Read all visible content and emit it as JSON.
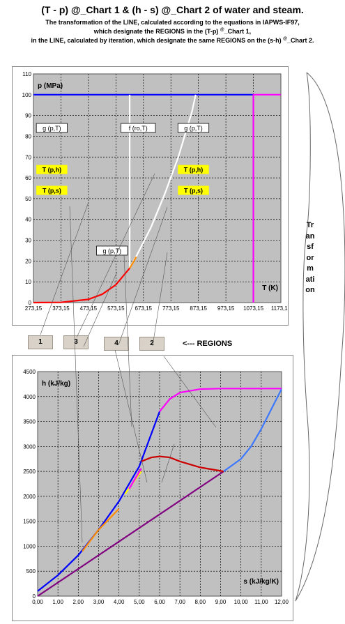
{
  "header": {
    "title": "(T - p) @_Chart 1 &  (h - s) @_Chart 2 of water and steam.",
    "line1": "The transformation of the LINE, calculated according to the equations in IAPWS-IF97,",
    "line2_pre": "which designate the REGIONS in the (T-p) ",
    "line2_sup": "@",
    "line2_post": "_Chart 1,",
    "line3_pre": "in the LINE, calculated by iteration, which designate the same REGIONS on the (s-h) ",
    "line3_sup": "@",
    "line3_post": "_Chart 2."
  },
  "regions": {
    "buttons": [
      "1",
      "3",
      "4",
      "2"
    ],
    "label": "<--- REGIONS"
  },
  "side_word": "Transformation",
  "colors": {
    "plot_bg": "#c0c0c0",
    "blue": "#0000ff",
    "magenta": "#ff00ff",
    "white": "#ffffff",
    "red": "#ff0000",
    "orange": "#ff8c00",
    "yellow": "#ffff00",
    "purple": "#800080",
    "lightblue": "#3c78ff",
    "darkred": "#cc0000",
    "label_yellow": "#ffff00"
  },
  "chart_data": [
    {
      "type": "line",
      "xlabel": "T (K)",
      "ylabel": "p (MPa)",
      "xlim": [
        273.15,
        1173.15
      ],
      "ylim": [
        0,
        110
      ],
      "x_ticks": [
        "273,15",
        "373,15",
        "473,15",
        "573,15",
        "673,15",
        "773,15",
        "873,15",
        "973,15",
        "1073,15",
        "1173,15"
      ],
      "y_ticks": [
        "0",
        "10",
        "20",
        "30",
        "40",
        "50",
        "60",
        "70",
        "80",
        "90",
        "100",
        "110"
      ],
      "grid": true,
      "annotations": [
        {
          "text": "g (p,T)",
          "x": 340,
          "y": 84,
          "style": "white"
        },
        {
          "text": "f (ro,T)",
          "x": 654,
          "y": 84,
          "style": "white"
        },
        {
          "text": "g (p,T)",
          "x": 855,
          "y": 84,
          "style": "white"
        },
        {
          "text": "T (p,h)",
          "x": 340,
          "y": 64,
          "style": "yellow"
        },
        {
          "text": "T (p,s)",
          "x": 340,
          "y": 54,
          "style": "yellow"
        },
        {
          "text": "T (p,h)",
          "x": 855,
          "y": 64,
          "style": "yellow"
        },
        {
          "text": "T (p,s)",
          "x": 855,
          "y": 54,
          "style": "yellow"
        },
        {
          "text": "g (p,T)",
          "x": 559,
          "y": 25,
          "style": "white"
        }
      ],
      "series": [
        {
          "color": "#0000ff",
          "x": [
            273.15,
            1073.15
          ],
          "y": [
            100,
            100
          ]
        },
        {
          "color": "#ff00ff",
          "x": [
            1073.15,
            1073.15,
            1173.15
          ],
          "y": [
            0,
            100,
            100
          ]
        },
        {
          "color": "#ffffff",
          "x": [
            623.15,
            623.15
          ],
          "y": [
            16.53,
            100
          ]
        },
        {
          "color": "#ffffff",
          "x": [
            623.15,
            650,
            700,
            750,
            800,
            850,
            863.15
          ],
          "y": [
            16.53,
            23,
            36,
            52,
            70,
            92,
            100
          ]
        },
        {
          "color": "#ff0000",
          "x": [
            273.15,
            373.15,
            473.15,
            523.15,
            573.15,
            623.15
          ],
          "y": [
            0,
            0.1,
            1.55,
            4,
            8.6,
            16.53
          ]
        },
        {
          "color": "#ff8c00",
          "x": [
            623.15,
            638,
            647.1
          ],
          "y": [
            16.53,
            19.8,
            22.06
          ]
        }
      ]
    },
    {
      "type": "line",
      "xlabel": "s (kJ/kg/K)",
      "ylabel": "h (kJ/kg)",
      "xlim": [
        0,
        12
      ],
      "ylim": [
        0,
        4500
      ],
      "x_ticks": [
        "0,00",
        "1,00",
        "2,00",
        "3,00",
        "4,00",
        "5,00",
        "6,00",
        "7,00",
        "8,00",
        "9,00",
        "10,00",
        "11,00",
        "12,00"
      ],
      "y_ticks": [
        "0",
        "500",
        "1000",
        "1500",
        "2000",
        "2500",
        "3000",
        "3500",
        "4000",
        "4500"
      ],
      "grid": true,
      "series": [
        {
          "color": "#800080",
          "x": [
            0,
            9.15
          ],
          "y": [
            0,
            2500
          ]
        },
        {
          "color": "#0000ff",
          "x": [
            0,
            1,
            2,
            3,
            4,
            5,
            6
          ],
          "y": [
            100,
            420,
            820,
            1330,
            1900,
            2600,
            3700
          ]
        },
        {
          "color": "#ff00ff",
          "x": [
            6,
            6.5,
            7,
            8,
            9,
            10,
            11,
            12
          ],
          "y": [
            3700,
            3950,
            4080,
            4150,
            4160,
            4160,
            4160,
            4160
          ]
        },
        {
          "color": "#ff8c00",
          "x": [
            2.2,
            3,
            4
          ],
          "y": [
            900,
            1330,
            1750
          ]
        },
        {
          "color": "#ffff00",
          "x": [
            4.3,
            5.1
          ],
          "y": [
            2050,
            2500
          ]
        },
        {
          "color": "#ff00ff",
          "x": [
            4.5,
            5.1
          ],
          "y": [
            2150,
            2560
          ]
        },
        {
          "color": "#cc0000",
          "x": [
            5.1,
            5.6,
            6,
            6.5,
            7,
            8,
            9.15
          ],
          "y": [
            2700,
            2780,
            2800,
            2780,
            2700,
            2580,
            2500
          ]
        },
        {
          "color": "#3c78ff",
          "x": [
            9.15,
            10,
            10.5,
            11,
            11.5,
            12
          ],
          "y": [
            2500,
            2750,
            3000,
            3350,
            3750,
            4150
          ]
        }
      ]
    }
  ]
}
